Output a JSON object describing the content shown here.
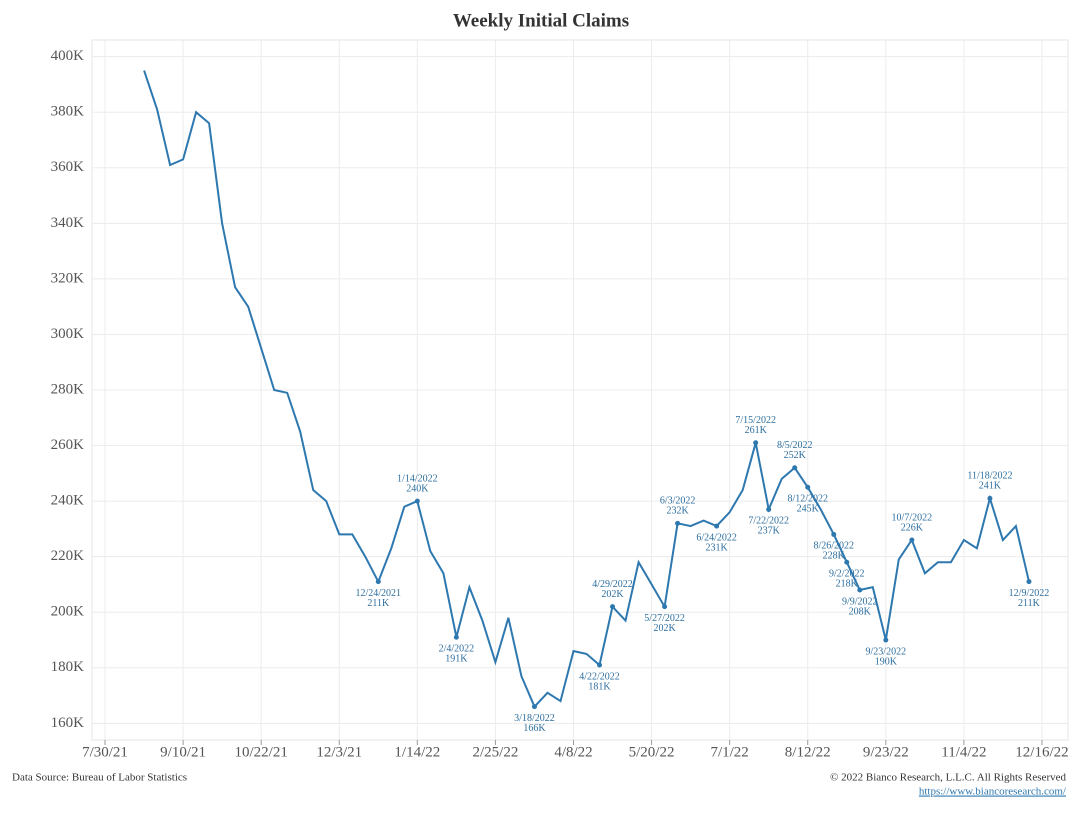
{
  "chart_data": {
    "type": "line",
    "title": "Weekly Initial Claims",
    "x": [
      "8/20/21",
      "8/27/21",
      "9/3/21",
      "9/10/21",
      "9/17/21",
      "9/24/21",
      "10/1/21",
      "10/8/21",
      "10/15/21",
      "10/22/21",
      "10/29/21",
      "11/5/21",
      "11/12/21",
      "11/19/21",
      "11/26/21",
      "12/3/21",
      "12/10/21",
      "12/17/21",
      "12/24/21",
      "12/31/21",
      "1/7/22",
      "1/14/22",
      "1/21/22",
      "1/28/22",
      "2/4/22",
      "2/11/22",
      "2/18/22",
      "2/25/22",
      "3/4/22",
      "3/11/22",
      "3/18/22",
      "3/25/22",
      "4/1/22",
      "4/8/22",
      "4/15/22",
      "4/22/22",
      "4/29/22",
      "5/6/22",
      "5/13/22",
      "5/20/22",
      "5/27/22",
      "6/3/22",
      "6/10/22",
      "6/17/22",
      "6/24/22",
      "7/1/22",
      "7/8/22",
      "7/15/22",
      "7/22/22",
      "7/29/22",
      "8/5/22",
      "8/12/22",
      "8/19/22",
      "8/26/22",
      "9/2/22",
      "9/9/22",
      "9/16/22",
      "9/23/22",
      "9/30/22",
      "10/7/22",
      "10/14/22",
      "10/21/22",
      "10/28/22",
      "11/4/22",
      "11/11/22",
      "11/18/22",
      "11/25/22",
      "12/2/22",
      "12/9/22"
    ],
    "series": [
      {
        "name": "Initial Claims",
        "color": "#2e78b0",
        "values": [
          395,
          381,
          361,
          363,
          380,
          376,
          340,
          317,
          310,
          295,
          280,
          279,
          265,
          244,
          240,
          228,
          228,
          220,
          211,
          223,
          238,
          240,
          222,
          214,
          191,
          209,
          197,
          182,
          198,
          177,
          166,
          171,
          168,
          186,
          185,
          181,
          202,
          197,
          218,
          210,
          202,
          232,
          231,
          233,
          231,
          236,
          244,
          261,
          237,
          248,
          252,
          245,
          237,
          228,
          218,
          208,
          209,
          190,
          219,
          226,
          214,
          218,
          218,
          226,
          223,
          241,
          226,
          231,
          211
        ]
      }
    ],
    "annotations": [
      {
        "date": "12/24/2021",
        "label": "211K"
      },
      {
        "date": "1/14/2022",
        "label": "240K"
      },
      {
        "date": "2/4/2022",
        "label": "191K"
      },
      {
        "date": "3/18/2022",
        "label": "166K"
      },
      {
        "date": "4/22/2022",
        "label": "181K"
      },
      {
        "date": "4/29/2022",
        "label": "202K"
      },
      {
        "date": "5/27/2022",
        "label": "202K"
      },
      {
        "date": "6/3/2022",
        "label": "232K"
      },
      {
        "date": "6/24/2022",
        "label": "231K"
      },
      {
        "date": "7/15/2022",
        "label": "261K"
      },
      {
        "date": "7/22/2022",
        "label": "237K"
      },
      {
        "date": "8/5/2022",
        "label": "252K"
      },
      {
        "date": "8/12/2022",
        "label": "245K"
      },
      {
        "date": "8/26/2022",
        "label": "228K"
      },
      {
        "date": "9/2/2022",
        "label": "218K"
      },
      {
        "date": "9/9/2022",
        "label": "208K"
      },
      {
        "date": "9/23/2022",
        "label": "190K"
      },
      {
        "date": "10/7/2022",
        "label": "226K"
      },
      {
        "date": "11/18/2022",
        "label": "241K"
      },
      {
        "date": "12/9/2022",
        "label": "211K"
      }
    ],
    "xlim": [
      "7/23/21",
      "12/30/22"
    ],
    "xticks": [
      "7/30/21",
      "9/10/21",
      "10/22/21",
      "12/3/21",
      "1/14/22",
      "2/25/22",
      "4/8/22",
      "5/20/22",
      "7/1/22",
      "8/12/22",
      "9/23/22",
      "11/4/22",
      "12/16/22"
    ],
    "ylim": [
      154,
      406
    ],
    "yticks": [
      {
        "value": 160,
        "label": "160K"
      },
      {
        "value": 180,
        "label": "180K"
      },
      {
        "value": 200,
        "label": "200K"
      },
      {
        "value": 220,
        "label": "220K"
      },
      {
        "value": 240,
        "label": "240K"
      },
      {
        "value": 260,
        "label": "260K"
      },
      {
        "value": 280,
        "label": "280K"
      },
      {
        "value": 300,
        "label": "300K"
      },
      {
        "value": 320,
        "label": "320K"
      },
      {
        "value": 340,
        "label": "340K"
      },
      {
        "value": 360,
        "label": "360K"
      },
      {
        "value": 380,
        "label": "380K"
      },
      {
        "value": 400,
        "label": "400K"
      }
    ],
    "grid": true,
    "source": "Data Source: Bureau of Labor Statistics",
    "copyright": "© 2022 Bianco Research, L.L.C. All Rights Reserved",
    "url": "https://www.biancoresearch.com/"
  }
}
